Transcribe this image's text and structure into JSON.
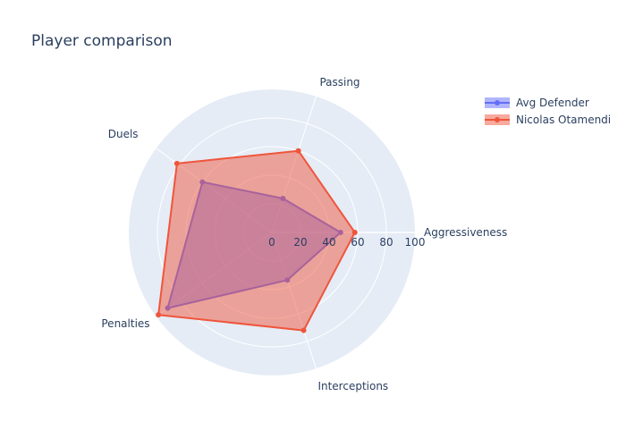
{
  "chart_data": {
    "type": "radar",
    "title": "Player comparison",
    "axes": [
      "Aggressiveness",
      "Passing",
      "Duels",
      "Penalties",
      "Interceptions"
    ],
    "radial_range": [
      0,
      100
    ],
    "radial_ticks": [
      0,
      20,
      40,
      60,
      80,
      100
    ],
    "legend_position": "top-right",
    "series": [
      {
        "name": "Avg Defender",
        "values": [
          48,
          25,
          60,
          90,
          35
        ],
        "color": "#636efa"
      },
      {
        "name": "Nicolas Otamendi",
        "values": [
          58,
          60,
          82,
          98,
          72
        ],
        "color": "#ef553b"
      }
    ]
  }
}
